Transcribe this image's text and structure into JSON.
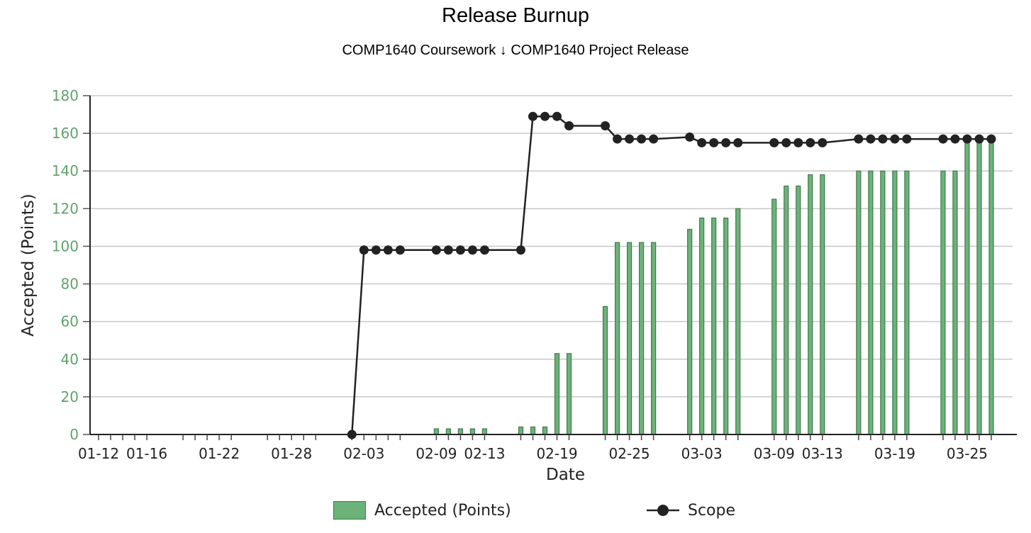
{
  "title": "Release Burnup",
  "subtitle": "COMP1640 Coursework ↓ COMP1640 Project Release",
  "colors": {
    "accepted_fill": "#6cb37a",
    "accepted_stroke": "#3f7a4c",
    "scope_line": "#222222",
    "axis_tick_text": "#5fa36b",
    "grid": "#c8c8c8"
  },
  "chart_data": {
    "type": "bar",
    "title": "",
    "xlabel": "Date",
    "ylabel": "Accepted (Points)",
    "ylim": [
      0,
      180
    ],
    "yticks": [
      0,
      20,
      40,
      60,
      80,
      100,
      120,
      140,
      160,
      180
    ],
    "grid": true,
    "legend_position": "bottom",
    "x_tick_labels": [
      "01-12",
      "01-16",
      "01-22",
      "01-28",
      "02-03",
      "02-09",
      "02-13",
      "02-19",
      "02-25",
      "03-03",
      "03-09",
      "03-13",
      "03-19",
      "03-25"
    ],
    "categories": [
      "01-12",
      "01-13",
      "01-14",
      "01-15",
      "01-16",
      "01-19",
      "01-20",
      "01-21",
      "01-22",
      "01-23",
      "01-26",
      "01-27",
      "01-28",
      "01-29",
      "01-30",
      "02-02",
      "02-03",
      "02-04",
      "02-05",
      "02-06",
      "02-09",
      "02-10",
      "02-11",
      "02-12",
      "02-13",
      "02-16",
      "02-17",
      "02-18",
      "02-19",
      "02-20",
      "02-23",
      "02-24",
      "02-25",
      "02-26",
      "02-27",
      "03-02",
      "03-03",
      "03-04",
      "03-05",
      "03-06",
      "03-09",
      "03-10",
      "03-11",
      "03-12",
      "03-13",
      "03-16",
      "03-17",
      "03-18",
      "03-19",
      "03-20",
      "03-23",
      "03-24",
      "03-25",
      "03-26",
      "03-27"
    ],
    "series": [
      {
        "name": "Accepted (Points)",
        "type": "bar",
        "values": [
          0,
          0,
          0,
          0,
          0,
          0,
          0,
          0,
          0,
          0,
          0,
          0,
          0,
          0,
          0,
          0,
          0,
          0,
          0,
          0,
          3,
          3,
          3,
          3,
          3,
          4,
          4,
          4,
          43,
          43,
          68,
          102,
          102,
          102,
          102,
          109,
          115,
          115,
          115,
          120,
          125,
          132,
          132,
          138,
          138,
          140,
          140,
          140,
          140,
          140,
          140,
          140,
          157,
          157,
          157
        ]
      },
      {
        "name": "Scope",
        "type": "line",
        "values": [
          null,
          null,
          null,
          null,
          null,
          null,
          null,
          null,
          null,
          null,
          null,
          null,
          null,
          null,
          null,
          0,
          98,
          98,
          98,
          98,
          98,
          98,
          98,
          98,
          98,
          98,
          169,
          169,
          169,
          164,
          164,
          157,
          157,
          157,
          157,
          158,
          155,
          155,
          155,
          155,
          155,
          155,
          155,
          155,
          155,
          157,
          157,
          157,
          157,
          157,
          157,
          157,
          157,
          157,
          157
        ]
      }
    ]
  }
}
